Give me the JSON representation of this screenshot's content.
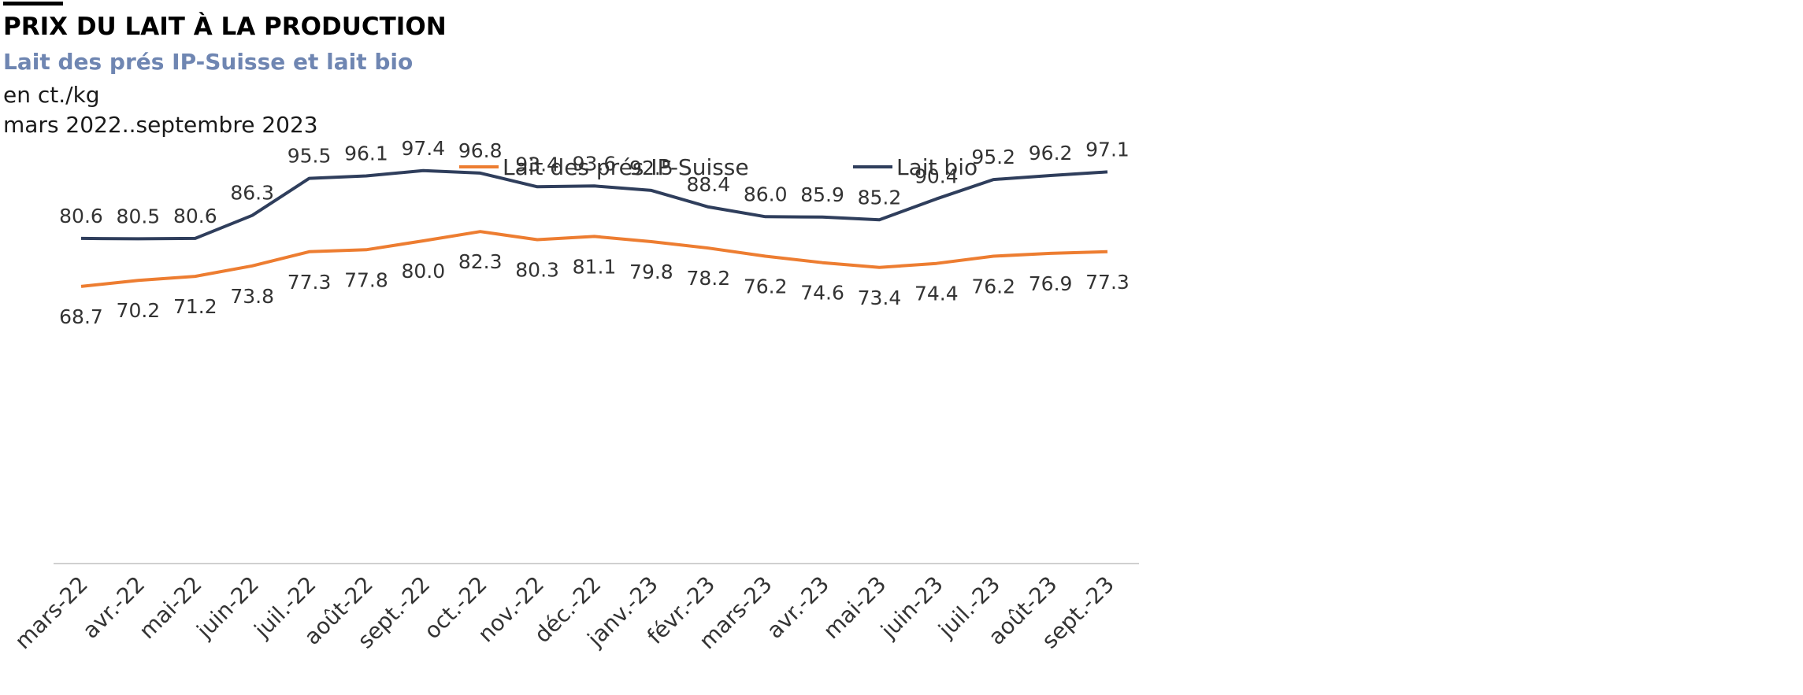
{
  "header": {
    "title": "PRIX DU LAIT À LA PRODUCTION",
    "subtitle": "Lait des prés IP-Suisse et lait bio",
    "unit": "en ct./kg",
    "period": "mars 2022..septembre 2023"
  },
  "colors": {
    "ip_suisse": "#ED7D31",
    "bio": "#2F3E5C",
    "subtitle": "#6F86B2",
    "axis": "#D0D0D0",
    "label": "#333333"
  },
  "chart_data": {
    "type": "line",
    "title": "PRIX DU LAIT À LA PRODUCTION",
    "subtitle": "Lait des prés IP-Suisse et lait bio",
    "ylabel": "en ct./kg",
    "categories": [
      "mars-22",
      "avr.-22",
      "mai-22",
      "juin-22",
      "juil.-22",
      "août-22",
      "sept.-22",
      "oct.-22",
      "nov.-22",
      "déc.-22",
      "janv.-23",
      "févr.-23",
      "mars-23",
      "avr.-23",
      "mai-23",
      "juin-23",
      "juil.-23",
      "août-23",
      "sept.-23"
    ],
    "series": [
      {
        "name": "Lait des prés IP-Suisse",
        "color": "#ED7D31",
        "label_position": "below",
        "values": [
          68.7,
          70.2,
          71.2,
          73.8,
          77.3,
          77.8,
          80.0,
          82.3,
          80.3,
          81.1,
          79.8,
          78.2,
          76.2,
          74.6,
          73.4,
          74.4,
          76.2,
          76.9,
          77.3
        ]
      },
      {
        "name": "Lait bio",
        "color": "#2F3E5C",
        "label_position": "above",
        "values": [
          80.6,
          80.5,
          80.6,
          86.3,
          95.5,
          96.1,
          97.4,
          96.8,
          93.4,
          93.6,
          92.5,
          88.4,
          86.0,
          85.9,
          85.2,
          90.4,
          95.2,
          96.2,
          97.1
        ]
      }
    ],
    "ylim": [
      0,
      125
    ],
    "grid": false,
    "legend": "top"
  }
}
